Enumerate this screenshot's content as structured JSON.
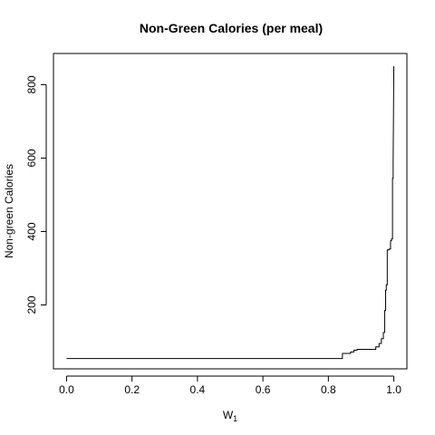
{
  "chart_data": {
    "type": "line",
    "title": "Non-Green Calories (per meal)",
    "xlabel_main": "W",
    "xlabel_sub": "1",
    "ylabel": "Non-green Calories",
    "xlim": [
      -0.04,
      1.04
    ],
    "ylim": [
      26,
      885
    ],
    "x_ticks": [
      0.0,
      0.2,
      0.4,
      0.6,
      0.8,
      1.0
    ],
    "x_tick_labels": [
      "0.0",
      "0.2",
      "0.4",
      "0.6",
      "0.8",
      "1.0"
    ],
    "y_ticks": [
      200,
      400,
      600,
      800
    ],
    "y_tick_labels": [
      "200",
      "400",
      "600",
      "800"
    ],
    "line_color": "#000000",
    "series": [
      {
        "x": [
          0.0,
          0.843,
          0.843,
          0.868,
          0.868,
          0.878,
          0.878,
          0.888,
          0.888,
          0.945,
          0.945,
          0.955,
          0.955,
          0.962,
          0.962,
          0.968,
          0.968,
          0.972,
          0.972,
          0.975,
          0.975,
          0.977,
          0.977,
          0.98,
          0.98,
          0.985,
          0.985,
          0.99,
          0.99,
          0.993,
          0.993,
          0.996,
          0.996,
          0.998,
          0.998,
          1.0
        ],
        "y": [
          54,
          54,
          68,
          68,
          72,
          72,
          77,
          77,
          79,
          79,
          86,
          86,
          95,
          95,
          108,
          108,
          125,
          125,
          185,
          185,
          240,
          240,
          255,
          255,
          350,
          350,
          352,
          352,
          375,
          375,
          380,
          380,
          545,
          545,
          590,
          850
        ]
      }
    ]
  }
}
